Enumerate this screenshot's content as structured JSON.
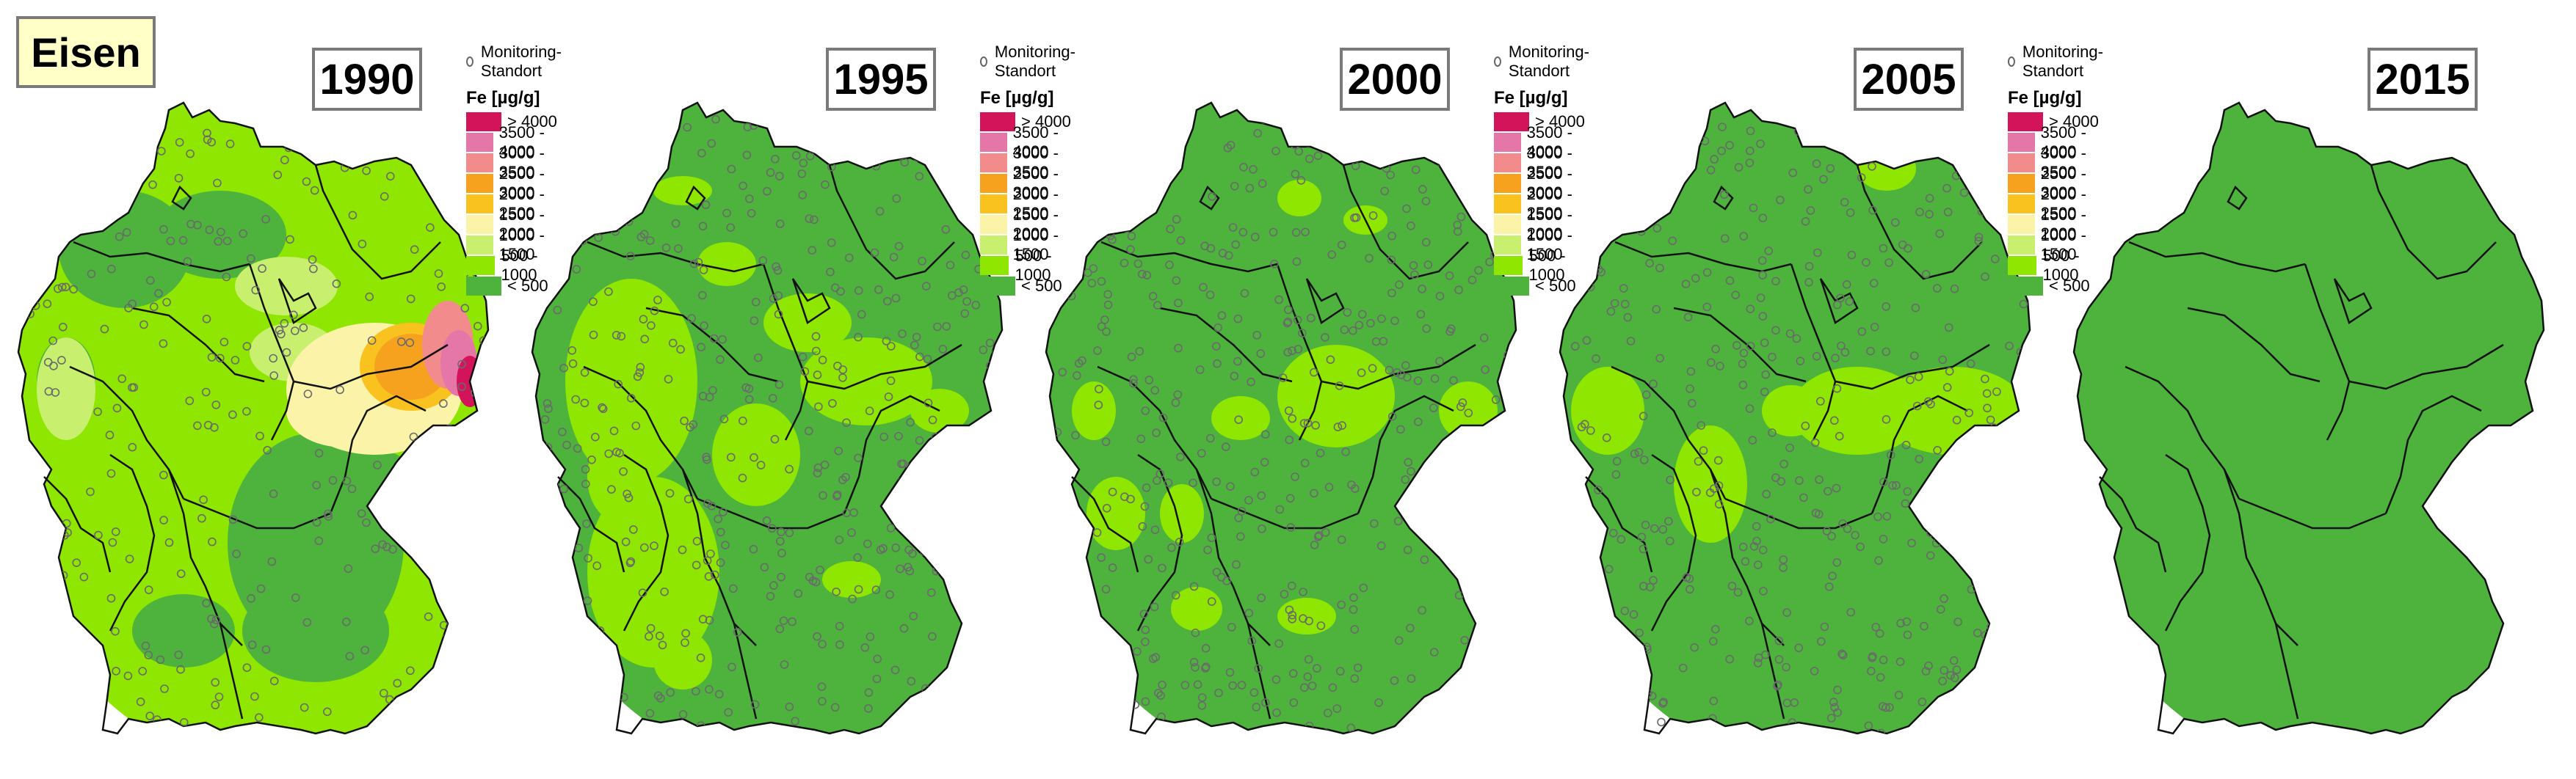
{
  "title": "Eisen",
  "legend": {
    "station_label": "Monitoring-Standort",
    "title": "Fe [µg/g]",
    "classes": [
      {
        "label": "> 4000",
        "color": "#d4145a"
      },
      {
        "label": "3500 - 4000",
        "color": "#e477a8"
      },
      {
        "label": "3000 - 3500",
        "color": "#f28c8c"
      },
      {
        "label": "2500 - 3000",
        "color": "#f7a21e"
      },
      {
        "label": "2000 - 2500",
        "color": "#f9c21f"
      },
      {
        "label": "1500 - 2000",
        "color": "#fbf4a8"
      },
      {
        "label": "1000 - 1500",
        "color": "#c8f06e"
      },
      {
        "label": "500 - 1000",
        "color": "#8fe600"
      },
      {
        "label": "< 500",
        "color": "#4db33d"
      }
    ]
  },
  "maps": [
    {
      "year": "1990"
    },
    {
      "year": "1995"
    },
    {
      "year": "2000"
    },
    {
      "year": "2005"
    },
    {
      "year": "2015"
    }
  ]
}
